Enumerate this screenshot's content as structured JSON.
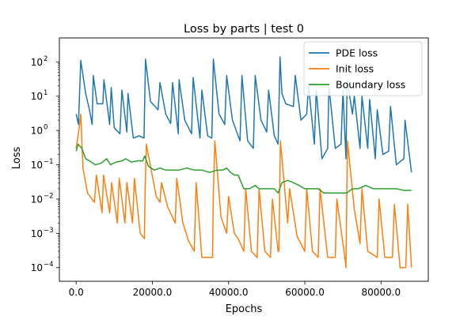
{
  "chart_data": {
    "type": "line",
    "title": "Loss by parts | test 0",
    "xlabel": "Epochs",
    "ylabel": "Loss",
    "yscale": "log",
    "xlim": [
      -4400,
      92400
    ],
    "ylim": [
      4e-05,
      500
    ],
    "grid": false,
    "legend_position": "top-right",
    "xticks": [
      {
        "value": 0,
        "label": "0.0"
      },
      {
        "value": 20000,
        "label": "20000.0"
      },
      {
        "value": 40000,
        "label": "40000.0"
      },
      {
        "value": 60000,
        "label": "60000.0"
      },
      {
        "value": 80000,
        "label": "80000.0"
      }
    ],
    "yticks": [
      {
        "value": 0.0001,
        "label": "10",
        "exp": "−4"
      },
      {
        "value": 0.001,
        "label": "10",
        "exp": "−3"
      },
      {
        "value": 0.01,
        "label": "10",
        "exp": "−2"
      },
      {
        "value": 0.1,
        "label": "10",
        "exp": "−1"
      },
      {
        "value": 1,
        "label": "10",
        "exp": "0"
      },
      {
        "value": 10,
        "label": "10",
        "exp": "1"
      },
      {
        "value": 100,
        "label": "10",
        "exp": "2"
      }
    ],
    "series": [
      {
        "name": "PDE loss",
        "color": "#1f77b4",
        "x": [
          0,
          600,
          1200,
          2500,
          3500,
          4200,
          4500,
          5500,
          7000,
          7300,
          8800,
          9200,
          10000,
          11500,
          12000,
          13300,
          13600,
          15000,
          16500,
          17800,
          18200,
          19500,
          21500,
          22000,
          23500,
          24800,
          25300,
          26800,
          27000,
          28500,
          30300,
          30700,
          32500,
          33000,
          34500,
          35600,
          36000,
          37500,
          39000,
          39500,
          41000,
          43000,
          43500,
          45000,
          46500,
          47000,
          48500,
          50000,
          50500,
          52000,
          53000,
          53500,
          54000,
          55000,
          57000,
          57500,
          59000,
          60500,
          61000,
          62500,
          63000,
          64500,
          66000,
          66300,
          68000,
          69500,
          70000,
          70800,
          71100,
          72500,
          73000,
          74500,
          75000,
          76500,
          77000,
          78500,
          79000,
          80500,
          82000,
          82500,
          84000,
          86000,
          86300,
          88000
        ],
        "values": [
          3,
          1.5,
          110,
          12,
          4,
          1.5,
          40,
          6,
          6,
          30,
          1.5,
          18,
          1.2,
          0.8,
          15,
          0.9,
          12,
          0.6,
          0.7,
          0.6,
          120,
          7,
          4,
          25,
          3,
          1.6,
          25,
          0.8,
          30,
          2,
          0.8,
          35,
          0.6,
          15,
          0.7,
          0.6,
          120,
          3,
          1.5,
          40,
          2,
          0.5,
          40,
          0.5,
          0.3,
          40,
          2,
          0.9,
          15,
          0.7,
          0.4,
          140,
          12,
          6,
          5,
          40,
          2,
          3,
          20,
          0.4,
          15,
          0.15,
          0.3,
          20,
          0.3,
          0.4,
          15,
          0.15,
          30,
          3,
          10,
          0.3,
          10,
          0.3,
          8,
          0.15,
          4,
          0.2,
          0.25,
          5,
          0.1,
          0.15,
          2,
          0.06
        ]
      },
      {
        "name": "Init loss",
        "color": "#ff7f0e",
        "x": [
          0,
          700,
          1200,
          1800,
          3000,
          4800,
          5300,
          6800,
          7200,
          8800,
          9300,
          10800,
          11300,
          12800,
          13300,
          14800,
          15300,
          16800,
          17900,
          18100,
          18400,
          21000,
          22000,
          22400,
          24000,
          26000,
          26400,
          28000,
          29500,
          31000,
          31500,
          33000,
          34500,
          35800,
          36000,
          36400,
          38000,
          39500,
          40000,
          41500,
          42500,
          44000,
          44500,
          46000,
          47500,
          48000,
          49500,
          51000,
          51500,
          53000,
          53200,
          53600,
          55500,
          56000,
          58000,
          60000,
          60500,
          62000,
          63500,
          64000,
          66000,
          68000,
          68400,
          70500,
          70800,
          71200,
          73000,
          74500,
          75000,
          76500,
          79000,
          79500,
          81000,
          83000,
          83500,
          85000,
          86500,
          87000,
          88000
        ],
        "values": [
          0.3,
          1,
          3,
          0.08,
          0.015,
          0.008,
          0.05,
          0.004,
          0.05,
          0.004,
          0.03,
          0.002,
          0.04,
          0.002,
          0.03,
          0.002,
          0.04,
          0.001,
          0.0007,
          0.015,
          0.4,
          0.012,
          0.008,
          0.03,
          0.006,
          0.002,
          0.04,
          0.002,
          0.0006,
          0.0003,
          0.03,
          0.0002,
          0.0002,
          0.0002,
          0.015,
          0.5,
          0.003,
          0.001,
          0.012,
          0.001,
          0.0007,
          0.0003,
          0.02,
          0.0003,
          0.0002,
          0.02,
          0.0003,
          0.0002,
          0.01,
          0.0003,
          0.0003,
          0.5,
          0.002,
          0.02,
          0.0008,
          0.0003,
          0.02,
          0.0003,
          0.0002,
          0.02,
          0.0002,
          0.0002,
          0.01,
          0.0002,
          0.0001,
          0.5,
          0.005,
          0.0005,
          0.02,
          0.0003,
          0.0002,
          0.01,
          0.0002,
          0.0002,
          0.007,
          0.0001,
          0.0001,
          0.007,
          0.0001
        ]
      },
      {
        "name": "Boundary loss",
        "color": "#2ca02c",
        "x": [
          0,
          500,
          1500,
          2500,
          4000,
          5000,
          6500,
          8000,
          9000,
          10500,
          12000,
          13000,
          14500,
          16000,
          17500,
          18000,
          19000,
          20500,
          22000,
          23500,
          25000,
          27000,
          29000,
          31000,
          33000,
          35000,
          37000,
          38500,
          39500,
          40500,
          41500,
          42500,
          44000,
          45500,
          47000,
          48000,
          50000,
          52000,
          53000,
          54000,
          55500,
          57000,
          58500,
          60000,
          62000,
          63500,
          65000,
          67000,
          69000,
          71000,
          72500,
          74000,
          76000,
          78000,
          80000,
          82000,
          84000,
          86000,
          88000
        ],
        "values": [
          0.25,
          0.4,
          0.3,
          0.15,
          0.12,
          0.1,
          0.11,
          0.15,
          0.1,
          0.12,
          0.13,
          0.15,
          0.12,
          0.13,
          0.13,
          0.18,
          0.09,
          0.07,
          0.08,
          0.07,
          0.07,
          0.07,
          0.08,
          0.07,
          0.07,
          0.06,
          0.07,
          0.07,
          0.08,
          0.06,
          0.05,
          0.05,
          0.02,
          0.02,
          0.025,
          0.02,
          0.02,
          0.02,
          0.015,
          0.03,
          0.035,
          0.03,
          0.025,
          0.02,
          0.02,
          0.02,
          0.015,
          0.015,
          0.015,
          0.015,
          0.02,
          0.02,
          0.025,
          0.02,
          0.02,
          0.02,
          0.02,
          0.018,
          0.018
        ]
      }
    ]
  }
}
